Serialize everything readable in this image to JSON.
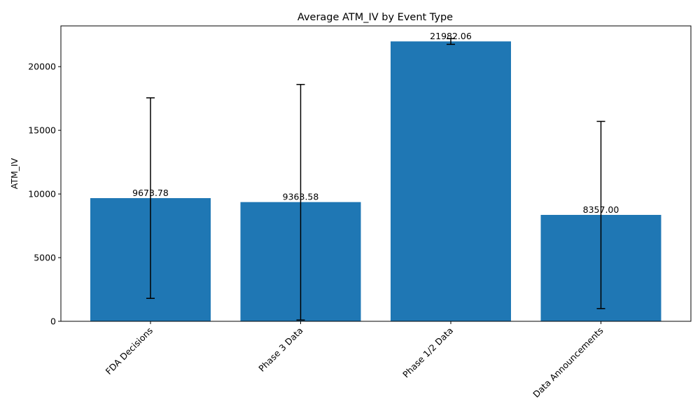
{
  "chart_data": {
    "type": "bar",
    "title": "Average ATM_IV by Event Type",
    "xlabel": "",
    "ylabel": "ATM_IV",
    "categories": [
      "FDA Decisions",
      "Phase 3 Data",
      "Phase 1/2 Data",
      "Data Announcements"
    ],
    "values": [
      9673.78,
      9363.58,
      21982.06,
      8357.0
    ],
    "value_labels": [
      "9673.78",
      "9363.58",
      "21982.06",
      "8357.00"
    ],
    "error_low": [
      1800,
      100,
      21750,
      1000
    ],
    "error_high": [
      17550,
      18600,
      22200,
      15700
    ],
    "ylim": [
      0,
      23200
    ],
    "yticks": [
      0,
      5000,
      10000,
      15000,
      20000
    ],
    "ytick_labels": [
      "0",
      "5000",
      "10000",
      "15000",
      "20000"
    ],
    "grid": false,
    "legend": "none",
    "bar_color": "#1f77b4",
    "error_color": "#000000",
    "xtick_rotation": 45
  }
}
